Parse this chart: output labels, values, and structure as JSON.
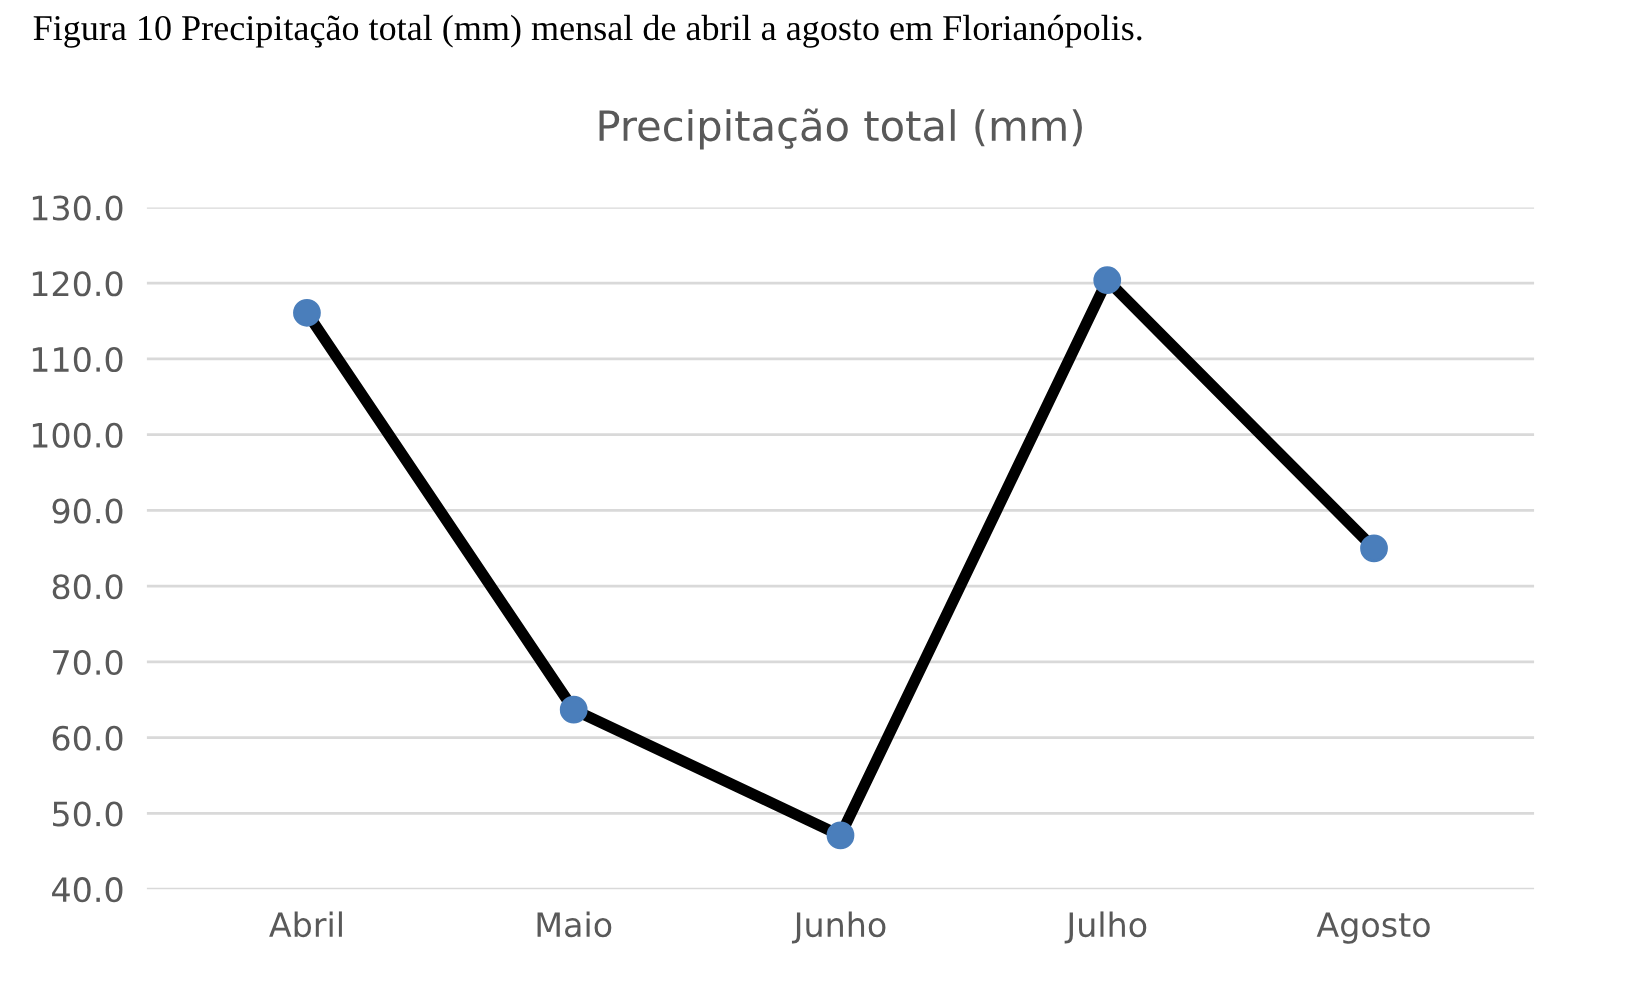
{
  "chart_data": {
    "type": "line",
    "title": "Precipitação total (mm)",
    "annotations": [
      "Figura 10 Precipitação total (mm) mensal de abril a agosto em Florianópolis."
    ],
    "categories": [
      "Abril",
      "Maio",
      "Junho",
      "Julho",
      "Agosto"
    ],
    "series": [
      {
        "color": "#000000",
        "values": [
          116.1,
          63.7,
          47.1,
          120.4,
          85.0
        ]
      }
    ],
    "marker": "circle",
    "ylim": [
      40,
      130
    ],
    "yticks": [
      {
        "value": 40,
        "label": "40.0"
      },
      {
        "value": 50,
        "label": "50.0"
      },
      {
        "value": 60,
        "label": "60.0"
      },
      {
        "value": 70,
        "label": "70.0"
      },
      {
        "value": 80,
        "label": "80.0"
      },
      {
        "value": 90,
        "label": "90.0"
      },
      {
        "value": 100,
        "label": "100.0"
      },
      {
        "value": 110,
        "label": "110.0"
      },
      {
        "value": 120,
        "label": "120.0"
      },
      {
        "value": 130,
        "label": "130.0"
      }
    ],
    "grid": "y",
    "legend": false
  }
}
